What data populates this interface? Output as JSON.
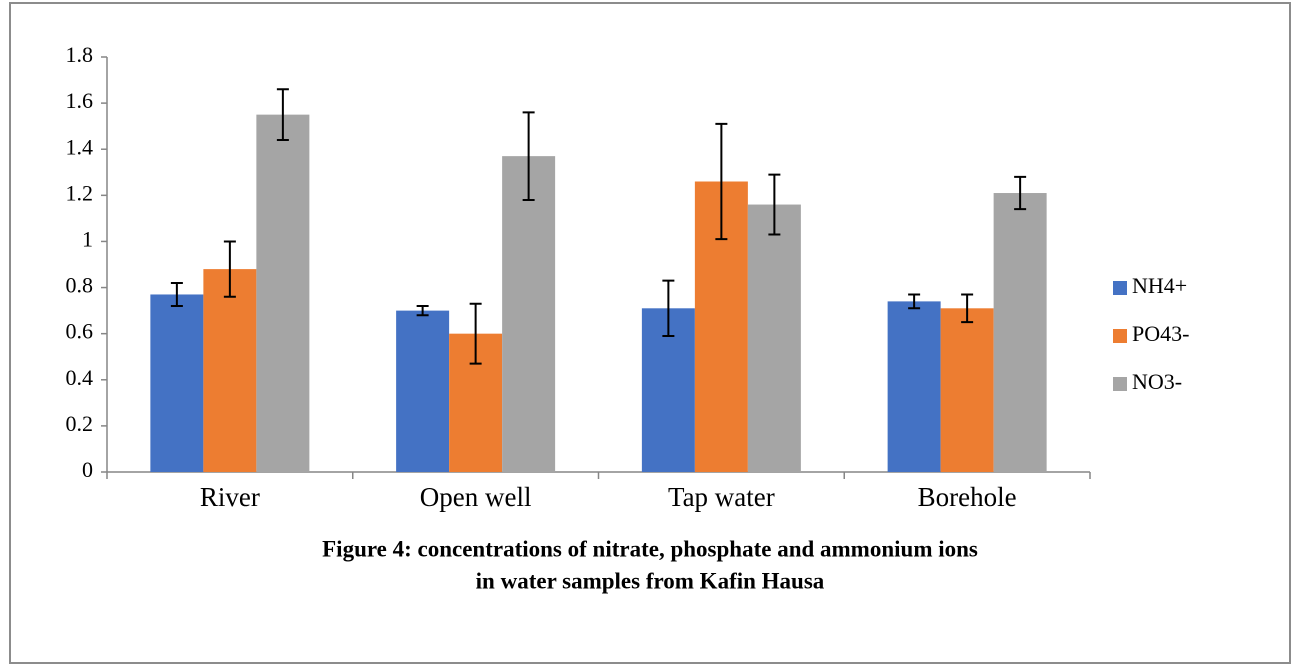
{
  "chart_data": {
    "type": "bar",
    "caption": [
      "Figure 4: concentrations of nitrate, phosphate  and  ammonium  ions",
      "in water  samples  from  Kafin  Hausa"
    ],
    "categories": [
      "River",
      "Open well",
      "Tap water",
      "Borehole"
    ],
    "series": [
      {
        "name": "NH4+",
        "color": "#4472c4",
        "values": [
          0.77,
          0.7,
          0.71,
          0.74
        ],
        "errors": [
          0.05,
          0.02,
          0.12,
          0.03
        ]
      },
      {
        "name": "PO43-",
        "color": "#ed7d31",
        "values": [
          0.88,
          0.6,
          1.26,
          0.71
        ],
        "errors": [
          0.12,
          0.13,
          0.25,
          0.06
        ]
      },
      {
        "name": "NO3-",
        "color": "#a5a5a5",
        "values": [
          1.55,
          1.37,
          1.16,
          1.21
        ],
        "errors": [
          0.11,
          0.19,
          0.13,
          0.07
        ]
      }
    ],
    "ylim": [
      0,
      1.8
    ],
    "yticks": [
      0,
      0.2,
      0.4,
      0.6,
      0.8,
      1,
      1.2,
      1.4,
      1.6,
      1.8
    ],
    "legend": "right"
  }
}
